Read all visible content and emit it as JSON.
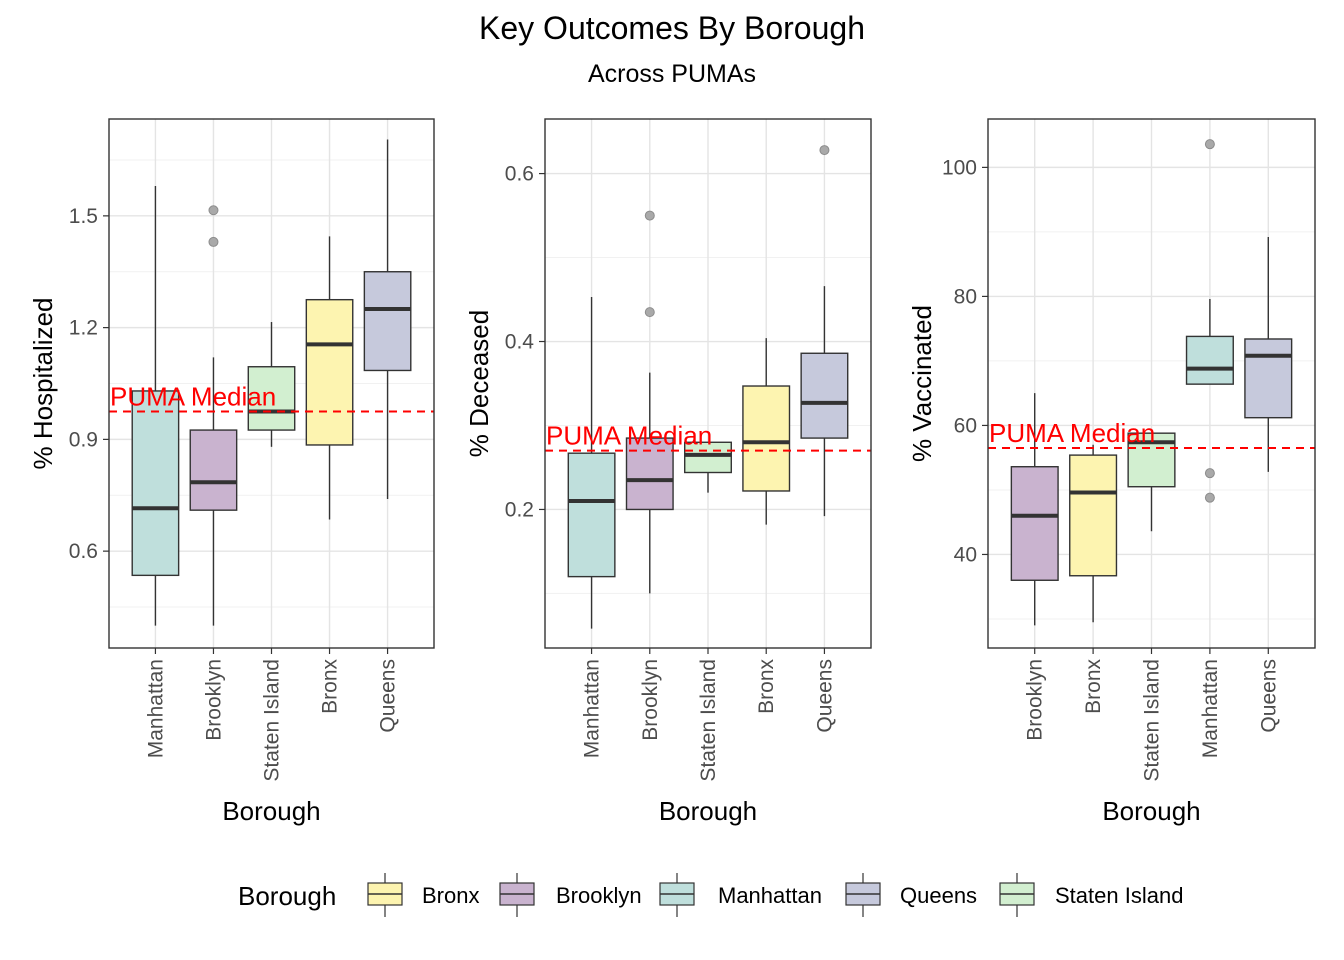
{
  "title": "Key Outcomes By Borough",
  "subtitle": "Across PUMAs",
  "colors": {
    "Bronx": "#fdf4b0",
    "Brooklyn": "#c9b3cf",
    "Manhattan": "#bfdfdc",
    "Queens": "#c6c9dc",
    "Staten Island": "#d2efd0",
    "median_line": "#ff0000",
    "outlier": "#a9a9a9"
  },
  "legend": {
    "title": "Borough",
    "items": [
      "Bronx",
      "Brooklyn",
      "Manhattan",
      "Queens",
      "Staten Island"
    ],
    "position": "bottom"
  },
  "chart_data": [
    {
      "type": "boxplot",
      "xlabel": "Borough",
      "ylabel": "% Hospitalized",
      "ylim": [
        0.34,
        1.76
      ],
      "yticks": [
        0.6,
        0.9,
        1.2,
        1.5
      ],
      "grid": true,
      "reference_line": {
        "label": "PUMA Median",
        "value": 0.975
      },
      "categories": [
        "Manhattan",
        "Brooklyn",
        "Staten Island",
        "Bronx",
        "Queens"
      ],
      "boxes": [
        {
          "group": "Manhattan",
          "min": 0.4,
          "q1": 0.535,
          "median": 0.715,
          "q3": 1.03,
          "max": 1.58,
          "outliers": []
        },
        {
          "group": "Brooklyn",
          "min": 0.4,
          "q1": 0.71,
          "median": 0.785,
          "q3": 0.925,
          "max": 1.12,
          "outliers": [
            1.43,
            1.515
          ]
        },
        {
          "group": "Staten Island",
          "min": 0.88,
          "q1": 0.925,
          "median": 0.975,
          "q3": 1.095,
          "max": 1.215,
          "outliers": []
        },
        {
          "group": "Bronx",
          "min": 0.685,
          "q1": 0.885,
          "median": 1.155,
          "q3": 1.275,
          "max": 1.445,
          "outliers": []
        },
        {
          "group": "Queens",
          "min": 0.74,
          "q1": 1.085,
          "median": 1.25,
          "q3": 1.35,
          "max": 1.705,
          "outliers": []
        }
      ]
    },
    {
      "type": "boxplot",
      "xlabel": "Borough",
      "ylabel": "% Deceased",
      "ylim": [
        0.035,
        0.665
      ],
      "yticks": [
        0.2,
        0.4,
        0.6
      ],
      "grid": true,
      "reference_line": {
        "label": "PUMA Median",
        "value": 0.27
      },
      "categories": [
        "Manhattan",
        "Brooklyn",
        "Staten Island",
        "Bronx",
        "Queens"
      ],
      "boxes": [
        {
          "group": "Manhattan",
          "min": 0.058,
          "q1": 0.12,
          "median": 0.21,
          "q3": 0.267,
          "max": 0.453,
          "outliers": []
        },
        {
          "group": "Brooklyn",
          "min": 0.1,
          "q1": 0.2,
          "median": 0.235,
          "q3": 0.285,
          "max": 0.363,
          "outliers": [
            0.435,
            0.55
          ]
        },
        {
          "group": "Staten Island",
          "min": 0.22,
          "q1": 0.244,
          "median": 0.265,
          "q3": 0.28,
          "max": 0.28,
          "outliers": []
        },
        {
          "group": "Bronx",
          "min": 0.182,
          "q1": 0.222,
          "median": 0.28,
          "q3": 0.347,
          "max": 0.404,
          "outliers": []
        },
        {
          "group": "Queens",
          "min": 0.192,
          "q1": 0.285,
          "median": 0.327,
          "q3": 0.386,
          "max": 0.466,
          "outliers": [
            0.628
          ]
        }
      ]
    },
    {
      "type": "boxplot",
      "xlabel": "Borough",
      "ylabel": "% Vaccinated",
      "ylim": [
        25.5,
        107.5
      ],
      "yticks": [
        40,
        60,
        80,
        100
      ],
      "grid": true,
      "reference_line": {
        "label": "PUMA Median",
        "value": 56.5
      },
      "categories": [
        "Brooklyn",
        "Bronx",
        "Staten Island",
        "Manhattan",
        "Queens"
      ],
      "boxes": [
        {
          "group": "Brooklyn",
          "min": 29,
          "q1": 36,
          "median": 46,
          "q3": 53.6,
          "max": 65,
          "outliers": []
        },
        {
          "group": "Bronx",
          "min": 29.5,
          "q1": 36.7,
          "median": 49.6,
          "q3": 55.4,
          "max": 57,
          "outliers": []
        },
        {
          "group": "Staten Island",
          "min": 43.6,
          "q1": 50.5,
          "median": 57.4,
          "q3": 58.8,
          "max": 58.8,
          "outliers": []
        },
        {
          "group": "Manhattan",
          "min": 66.4,
          "q1": 66.4,
          "median": 68.8,
          "q3": 73.8,
          "max": 79.6,
          "outliers": [
            52.6,
            48.8,
            103.6
          ]
        },
        {
          "group": "Queens",
          "min": 52.8,
          "q1": 61.2,
          "median": 70.8,
          "q3": 73.4,
          "max": 89.2,
          "outliers": []
        }
      ]
    }
  ]
}
